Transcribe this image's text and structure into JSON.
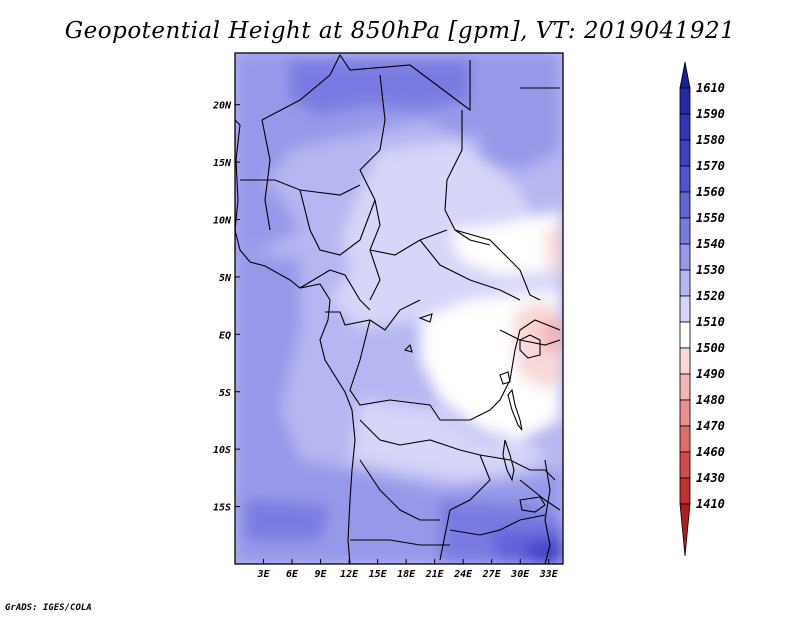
{
  "title": "Geopotential Height at 850hPa [gpm], VT: 2019041921",
  "credit": "GrADS: IGES/COLA",
  "map": {
    "projection": "latlon",
    "lon_range": [
      0,
      34.5
    ],
    "lat_range": [
      -20,
      24.5
    ],
    "x_axis": {
      "ticks": [
        3,
        6,
        9,
        12,
        15,
        18,
        21,
        24,
        27,
        30,
        33
      ],
      "labels": [
        "3E",
        "6E",
        "9E",
        "12E",
        "15E",
        "18E",
        "21E",
        "24E",
        "27E",
        "30E",
        "33E"
      ]
    },
    "y_axis": {
      "ticks": [
        20,
        15,
        10,
        5,
        0,
        -5,
        -10,
        -15
      ],
      "labels": [
        "20N",
        "15N",
        "10N",
        "5N",
        "EQ",
        "5S",
        "10S",
        "15S"
      ]
    }
  },
  "colorbar": {
    "labels": [
      "1610",
      "1590",
      "1580",
      "1570",
      "1560",
      "1550",
      "1540",
      "1530",
      "1520",
      "1510",
      "1500",
      "1490",
      "1480",
      "1470",
      "1460",
      "1430",
      "1410"
    ],
    "colors": [
      "#1e1e96",
      "#2828a8",
      "#3434b8",
      "#4040c6",
      "#5252d0",
      "#6464da",
      "#7a7ae2",
      "#9898ea",
      "#b6b6f2",
      "#d6d6f8",
      "#ffffff",
      "#f8d8d8",
      "#f2b4b4",
      "#ea9090",
      "#e06c6c",
      "#d44a4a",
      "#c43030",
      "#ae1e1e"
    ]
  }
}
